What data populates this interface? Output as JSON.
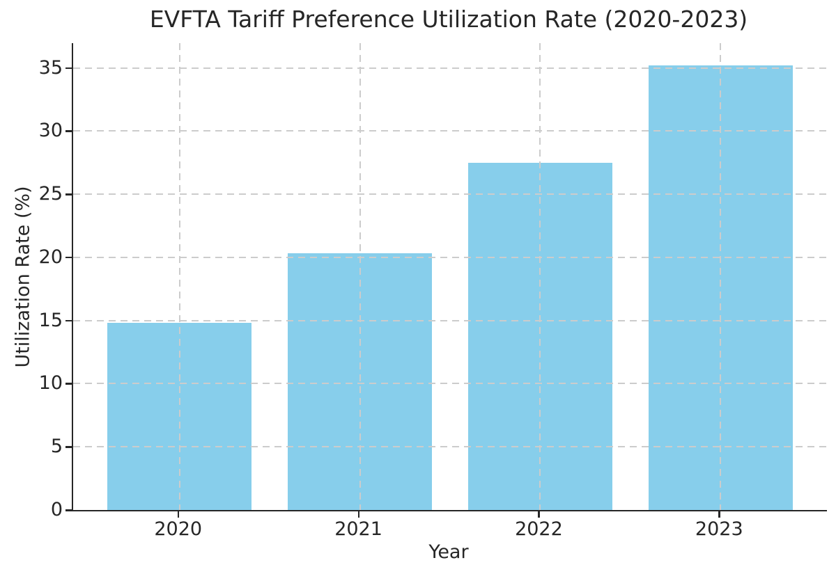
{
  "chart_data": {
    "type": "bar",
    "title": "EVFTA Tariff Preference Utilization Rate (2020-2023)",
    "xlabel": "Year",
    "ylabel": "Utilization Rate (%)",
    "categories": [
      "2020",
      "2021",
      "2022",
      "2023"
    ],
    "values": [
      14.8,
      20.3,
      27.5,
      35.2
    ],
    "yticks": [
      0,
      5,
      10,
      15,
      20,
      25,
      30,
      35
    ],
    "ylim": [
      0,
      36.96
    ],
    "grid": "dashed gridlines on both axes, drawn above bars",
    "legend_position": "none",
    "bar_color": "#87CEEB"
  },
  "colors": {
    "bar": "#87CEEB",
    "text": "#262626",
    "spine": "#262626",
    "grid": "#cccccc",
    "background": "#ffffff"
  }
}
